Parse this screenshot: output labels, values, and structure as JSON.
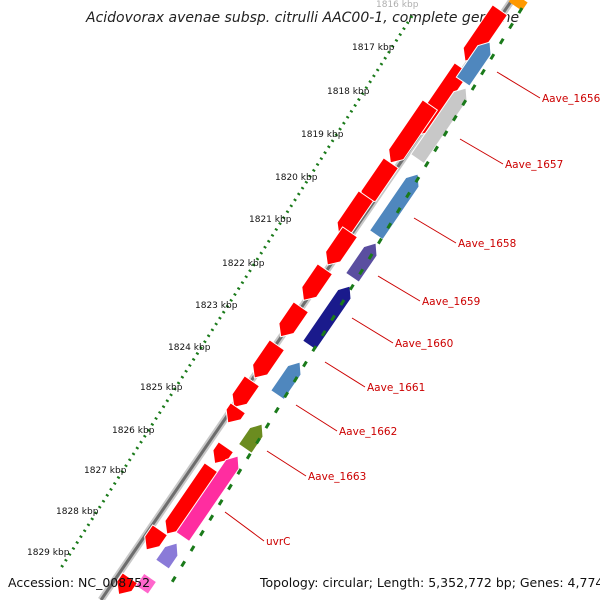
{
  "title": "Acidovorax avenae subsp. citrulli AAC00-1, complete genome",
  "footer": {
    "accession": "Accession: NC_008752",
    "topology": "Topology: circular; Length: 5,352,772 bp; Genes: 4,774"
  },
  "scale_labels": [
    "1816 kbp",
    "1817 kbp",
    "1818 kbp",
    "1819 kbp",
    "1820 kbp",
    "1821 kbp",
    "1822 kbp",
    "1823 kbp",
    "1824 kbp",
    "1825 kbp",
    "1826 kbp",
    "1827 kbp",
    "1828 kbp",
    "1829 kbp"
  ],
  "gene_labels": [
    "Aave_1656",
    "Aave_1657",
    "Aave_1658",
    "Aave_1659",
    "Aave_1660",
    "Aave_1661",
    "Aave_1662",
    "Aave_1663",
    "uvrC"
  ],
  "colors": {
    "forward_track": "#ff0000",
    "backbone": "#8c8c8c",
    "tick": "#1a7a1a",
    "label_red": "#cc0000",
    "Aave_1656": "#4f87be",
    "Aave_1657": "#c8c8c8",
    "Aave_1658": "#4f87be",
    "Aave_1659": "#5a4ea0",
    "Aave_1660": "#1a1a8c",
    "Aave_1661": "#4f87be",
    "Aave_1662": "#6b8c20",
    "Aave_1663": "#ff2da0",
    "uvrC": "#8a7ad8",
    "top_orange": "#ff9900",
    "bottom_pink": "#ff66cc"
  }
}
